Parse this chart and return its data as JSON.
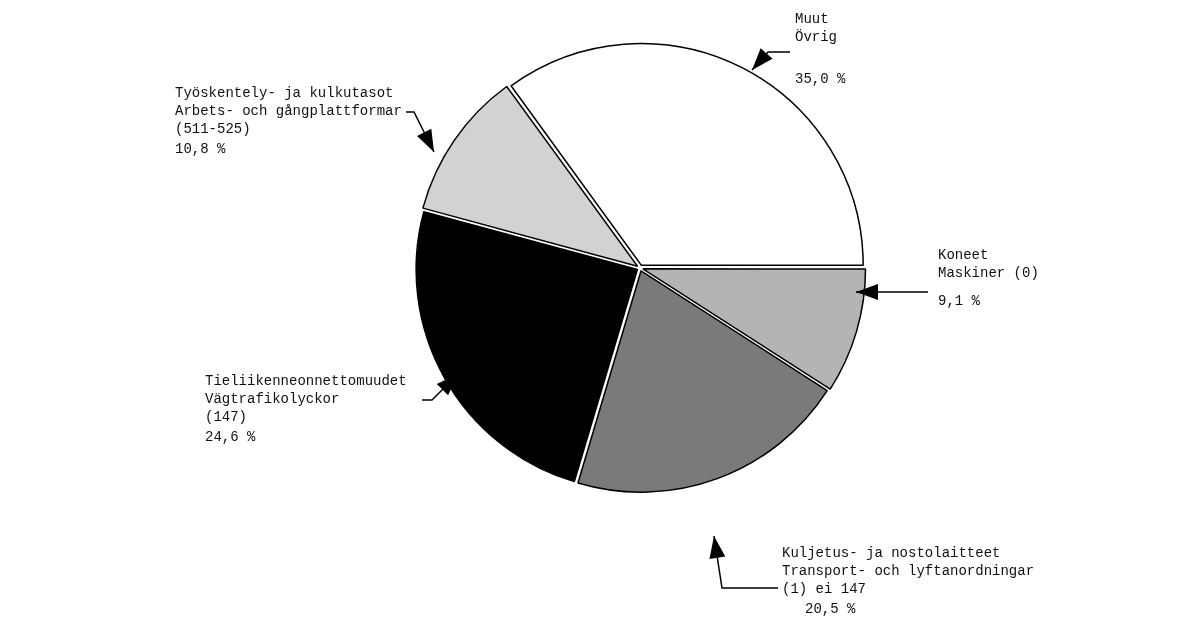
{
  "chart_data": {
    "type": "pie",
    "categories": [
      "Muut\nÖvrig",
      "Koneet\nMaskiner (0)",
      "Kuljetus- ja nostolaitteet\nTransport- och lyftanordningar\n(1) ei 147",
      "Tieliikenneonnettomuudet\nVägtrafikolyckor\n(147)",
      "Työskentely- ja kulkutasot\nArbets- och gångplattformar\n(511-525)"
    ],
    "values": [
      35.0,
      9.1,
      20.5,
      24.6,
      10.8
    ],
    "colors": [
      "#ffffff",
      "#b4b4b4",
      "#7a7a7a",
      "#000000",
      "#d2d2d2"
    ],
    "value_labels": [
      "35,0 %",
      "9,1 %",
      "20,5 %",
      "24,6 %",
      "10,8 %"
    ]
  }
}
